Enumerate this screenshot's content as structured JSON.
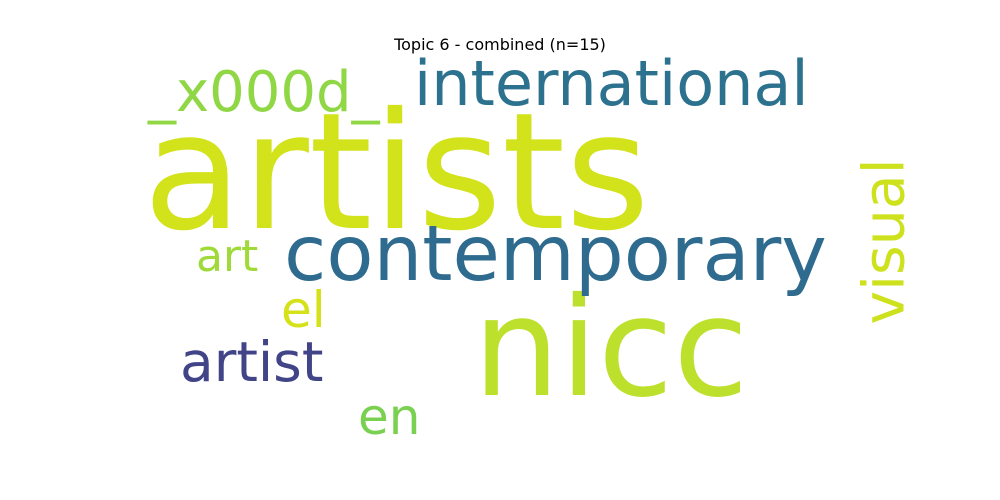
{
  "title": "Topic 6 - combined (n=15)",
  "words": [
    {
      "text": "artists",
      "color": "#d2e21b"
    },
    {
      "text": "nicc",
      "color": "#bde02c"
    },
    {
      "text": "contemporary",
      "color": "#2e6b8e"
    },
    {
      "text": "international",
      "color": "#2c728e"
    },
    {
      "text": "_x000d_",
      "color": "#8fd744"
    },
    {
      "text": "visual",
      "color": "#cde11d"
    },
    {
      "text": "artist",
      "color": "#414487"
    },
    {
      "text": "art",
      "color": "#a0da39"
    },
    {
      "text": "el",
      "color": "#d5e21a"
    },
    {
      "text": "en",
      "color": "#7ad151"
    }
  ]
}
